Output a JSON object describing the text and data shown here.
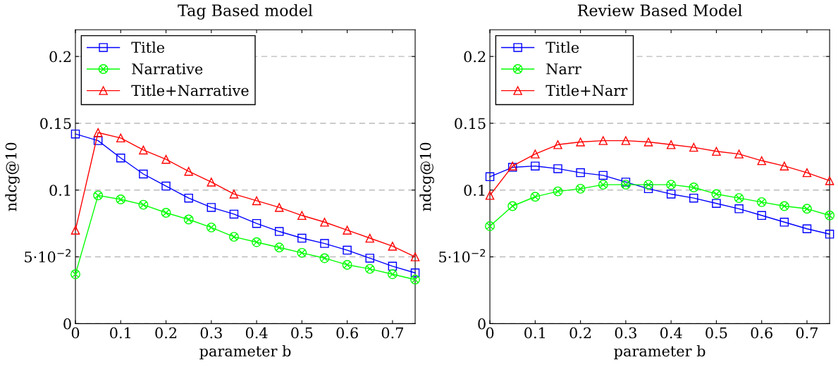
{
  "chart_data": [
    {
      "type": "line",
      "title": "Tag Based model",
      "xlabel": "parameter b",
      "ylabel": "ndcg@10",
      "x": [
        0,
        0.05,
        0.1,
        0.15,
        0.2,
        0.25,
        0.3,
        0.35,
        0.4,
        0.45,
        0.5,
        0.55,
        0.6,
        0.65,
        0.7,
        0.75
      ],
      "xlim": [
        0,
        0.75
      ],
      "xticks": [
        0,
        0.1,
        0.2,
        0.3,
        0.4,
        0.5,
        0.6,
        0.7
      ],
      "ylim": [
        0,
        0.22
      ],
      "yticks": [
        0,
        {
          "value": 0.05,
          "label": "5·10$^{−2}$"
        },
        0.1,
        0.15,
        0.2
      ],
      "grid": "y",
      "legend": "top left",
      "series": [
        {
          "name": "Title",
          "color": "#0000ff",
          "marker": "square",
          "values": [
            0.142,
            0.137,
            0.124,
            0.112,
            0.103,
            0.094,
            0.087,
            0.082,
            0.075,
            0.069,
            0.064,
            0.06,
            0.055,
            0.049,
            0.043,
            0.038
          ]
        },
        {
          "name": "Narrative",
          "color": "#00ff00",
          "marker": "cross",
          "values": [
            0.037,
            0.096,
            0.093,
            0.089,
            0.083,
            0.078,
            0.072,
            0.065,
            0.061,
            0.057,
            0.053,
            0.049,
            0.044,
            0.041,
            0.037,
            0.033
          ]
        },
        {
          "name": "Title+Narrative",
          "color": "#ff0000",
          "marker": "triangle",
          "values": [
            0.07,
            0.143,
            0.139,
            0.13,
            0.123,
            0.114,
            0.106,
            0.097,
            0.092,
            0.087,
            0.081,
            0.076,
            0.07,
            0.064,
            0.058,
            0.05
          ]
        }
      ]
    },
    {
      "type": "line",
      "title": "Review Based Model",
      "xlabel": "parameter b",
      "ylabel": "ndcg@10",
      "x": [
        0,
        0.05,
        0.1,
        0.15,
        0.2,
        0.25,
        0.3,
        0.35,
        0.4,
        0.45,
        0.5,
        0.55,
        0.6,
        0.65,
        0.7,
        0.75
      ],
      "xlim": [
        0,
        0.75
      ],
      "xticks": [
        0,
        0.1,
        0.2,
        0.3,
        0.4,
        0.5,
        0.6,
        0.7
      ],
      "ylim": [
        0,
        0.22
      ],
      "yticks": [
        0,
        {
          "value": 0.05,
          "label": "5·10$^{−2}$"
        },
        0.1,
        0.15,
        0.2
      ],
      "grid": "y",
      "legend": "top left",
      "series": [
        {
          "name": "Title",
          "color": "#0000ff",
          "marker": "square",
          "values": [
            0.11,
            0.117,
            0.118,
            0.116,
            0.113,
            0.111,
            0.106,
            0.101,
            0.097,
            0.094,
            0.09,
            0.086,
            0.081,
            0.076,
            0.071,
            0.067
          ]
        },
        {
          "name": "Narr",
          "color": "#00ff00",
          "marker": "cross",
          "values": [
            0.073,
            0.088,
            0.095,
            0.099,
            0.101,
            0.104,
            0.104,
            0.104,
            0.104,
            0.102,
            0.097,
            0.094,
            0.091,
            0.088,
            0.086,
            0.081
          ]
        },
        {
          "name": "Title+Narr",
          "color": "#ff0000",
          "marker": "triangle",
          "values": [
            0.096,
            0.118,
            0.127,
            0.134,
            0.136,
            0.137,
            0.137,
            0.136,
            0.134,
            0.132,
            0.129,
            0.127,
            0.122,
            0.118,
            0.113,
            0.107
          ]
        }
      ]
    }
  ]
}
